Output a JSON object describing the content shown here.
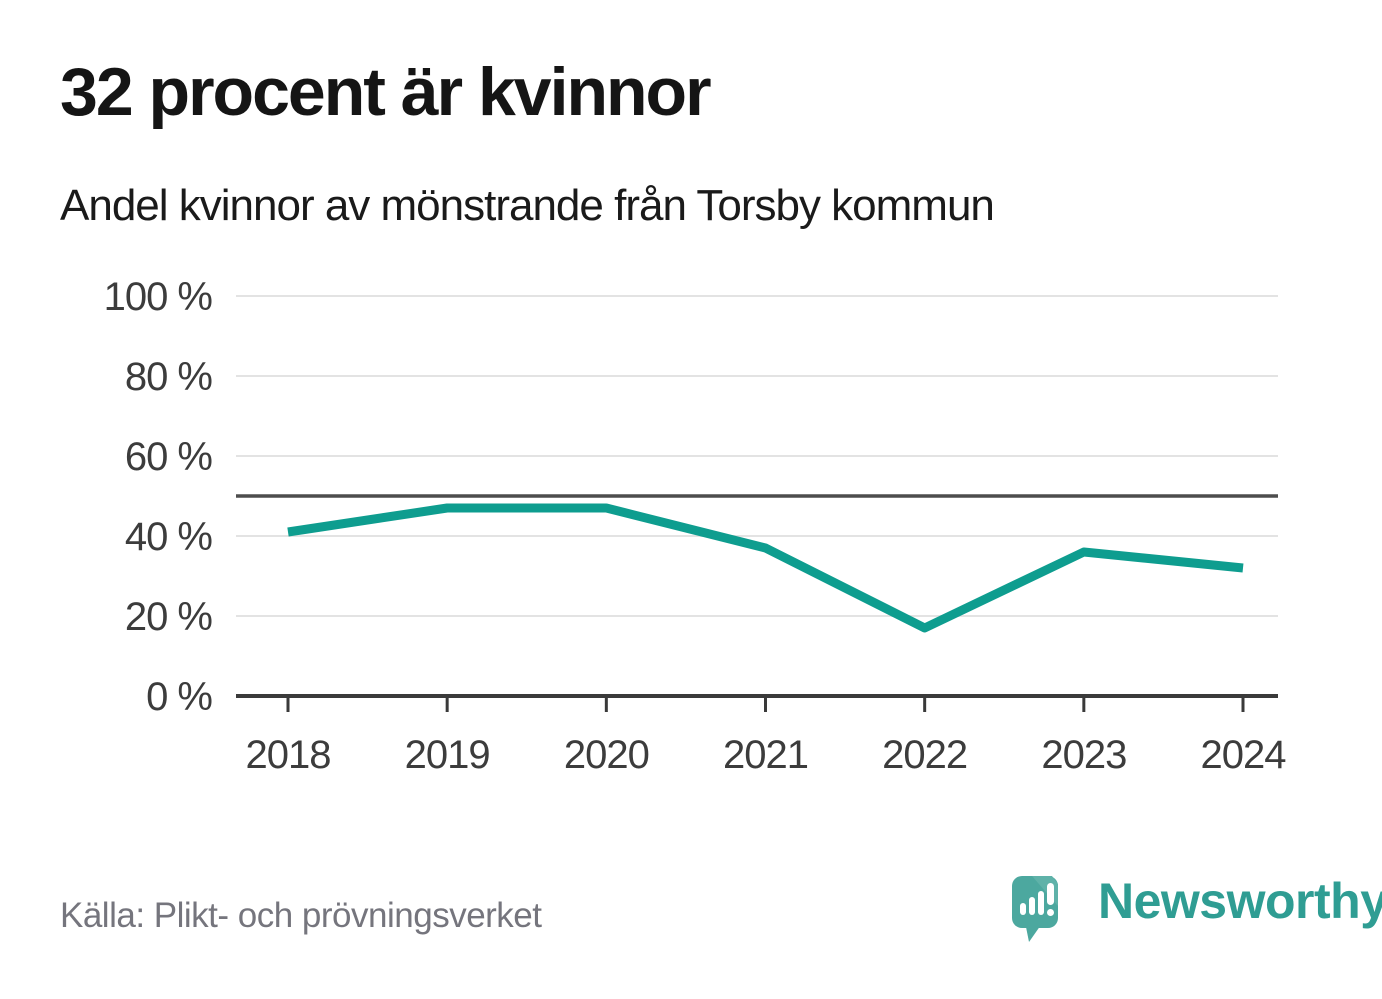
{
  "header": {
    "title": "32 procent är kvinnor",
    "subtitle": "Andel kvinnor av mönstrande från Torsby kommun"
  },
  "chart_data": {
    "type": "line",
    "categories": [
      "2018",
      "2019",
      "2020",
      "2021",
      "2022",
      "2023",
      "2024"
    ],
    "values": [
      41,
      47,
      47,
      37,
      17,
      36,
      32
    ],
    "title": "32 procent är kvinnor",
    "subtitle": "Andel kvinnor av mönstrande från Torsby kommun",
    "xlabel": "",
    "ylabel": "",
    "ylim": [
      0,
      100
    ],
    "yticks": [
      0,
      20,
      40,
      60,
      80,
      100
    ],
    "ytick_labels": [
      "0 %",
      "20 %",
      "40 %",
      "60 %",
      "80 %",
      "100 %"
    ],
    "reference_line": 50,
    "grid": true,
    "legend": false
  },
  "footer": {
    "source": "Källa: Plikt- och prövningsverket",
    "brand": "Newsworthy"
  },
  "colors": {
    "line": "#0E9D8F",
    "reference_line": "#4D4D4D",
    "axis": "#3A3A3A",
    "gridline": "#E3E3E3",
    "tick_label": "#3C3C3C",
    "brand_teal": "#2F9D93",
    "logo_bubble": "#4CA89F",
    "logo_bubble_light": "#5FB2A9",
    "source_text": "#75757D"
  }
}
